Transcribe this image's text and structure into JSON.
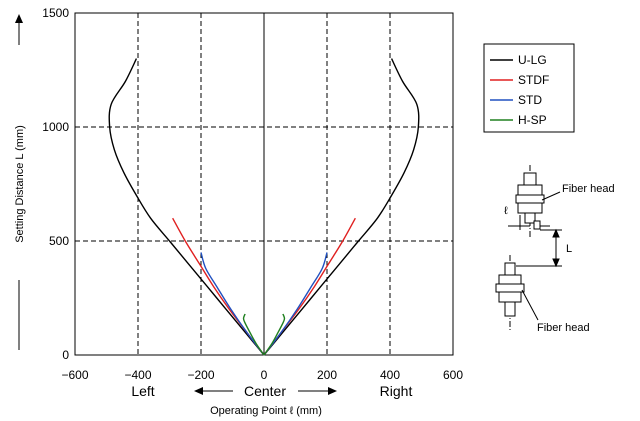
{
  "chart_data": {
    "type": "line",
    "xlabel": "Operating Point ℓ (mm)",
    "ylabel": "Setting Distance L (mm)",
    "xlim": [
      -600,
      600
    ],
    "ylim": [
      0,
      1500
    ],
    "x_ticks": [
      "−600",
      "−200",
      "0",
      "200",
      "400",
      "600"
    ],
    "x_tick_values": [
      -600,
      -200,
      0,
      200,
      400,
      600
    ],
    "x_tick_labels_all": [
      "−600",
      "−400",
      "−200",
      "0",
      "200",
      "400",
      "600"
    ],
    "y_tick_labels": [
      "0",
      "500",
      "1000",
      "1500"
    ],
    "y_tick_values": [
      0,
      500,
      1000,
      1500
    ],
    "grid": "dashed",
    "legend_position": "right",
    "direction_labels": {
      "left": "Left",
      "center": "Center",
      "right": "Right"
    },
    "series": [
      {
        "name": "U-LG",
        "color": "#000000",
        "points": [
          [
            0,
            0
          ],
          [
            -60,
            100
          ],
          [
            -120,
            200
          ],
          [
            -180,
            300
          ],
          [
            -240,
            400
          ],
          [
            -300,
            500
          ],
          [
            -360,
            600
          ],
          [
            -405,
            700
          ],
          [
            -445,
            800
          ],
          [
            -475,
            900
          ],
          [
            -490,
            1000
          ],
          [
            -485,
            1100
          ],
          [
            -440,
            1200
          ],
          [
            -405,
            1300
          ]
        ],
        "points_right": [
          [
            0,
            0
          ],
          [
            60,
            100
          ],
          [
            120,
            200
          ],
          [
            180,
            300
          ],
          [
            240,
            400
          ],
          [
            300,
            500
          ],
          [
            360,
            600
          ],
          [
            405,
            700
          ],
          [
            445,
            800
          ],
          [
            475,
            900
          ],
          [
            490,
            1000
          ],
          [
            485,
            1100
          ],
          [
            440,
            1200
          ],
          [
            405,
            1300
          ]
        ]
      },
      {
        "name": "STDF",
        "color": "#e02020",
        "points": [
          [
            0,
            0
          ],
          [
            -55,
            100
          ],
          [
            -110,
            200
          ],
          [
            -160,
            300
          ],
          [
            -205,
            400
          ],
          [
            -250,
            500
          ],
          [
            -290,
            600
          ]
        ],
        "points_right": [
          [
            0,
            0
          ],
          [
            55,
            100
          ],
          [
            110,
            200
          ],
          [
            160,
            300
          ],
          [
            205,
            400
          ],
          [
            250,
            500
          ],
          [
            290,
            600
          ]
        ]
      },
      {
        "name": "STD",
        "color": "#2050c0",
        "points": [
          [
            0,
            0
          ],
          [
            -55,
            100
          ],
          [
            -105,
            200
          ],
          [
            -150,
            300
          ],
          [
            -185,
            380
          ],
          [
            -200,
            450
          ]
        ],
        "points_right": [
          [
            0,
            0
          ],
          [
            55,
            100
          ],
          [
            105,
            200
          ],
          [
            150,
            300
          ],
          [
            185,
            380
          ],
          [
            200,
            450
          ]
        ]
      },
      {
        "name": "H-SP",
        "color": "#208020",
        "points": [
          [
            0,
            0
          ],
          [
            -25,
            50
          ],
          [
            -45,
            100
          ],
          [
            -60,
            140
          ],
          [
            -65,
            160
          ],
          [
            -60,
            180
          ]
        ],
        "points_right": [
          [
            0,
            0
          ],
          [
            25,
            50
          ],
          [
            45,
            100
          ],
          [
            60,
            140
          ],
          [
            65,
            160
          ],
          [
            60,
            180
          ]
        ]
      }
    ]
  },
  "diagram": {
    "fiber_head_top": "Fiber head",
    "fiber_head_bottom": "Fiber head",
    "ell_symbol": "ℓ",
    "L_symbol": "L"
  }
}
